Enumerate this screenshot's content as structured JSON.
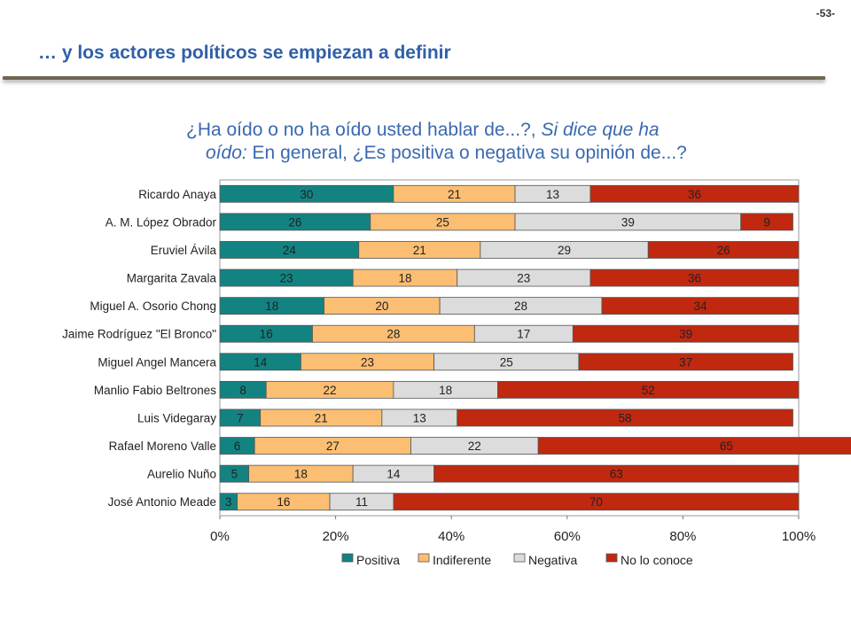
{
  "header": {
    "page_number": "-53-",
    "title": "… y los actores políticos se empiezan a definir"
  },
  "question": {
    "line1": "¿Ha oído o no ha oído usted hablar de...?, ",
    "line1_italic": "Si dice que ha",
    "line2_italic": "oído:",
    "line2": " En general, ¿Es positiva o negativa su opinión de...?"
  },
  "chart_data": {
    "type": "bar",
    "orientation": "horizontal",
    "stacked": "percent",
    "categories": [
      "Ricardo Anaya",
      "A. M. López Obrador",
      "Eruviel Ávila",
      "Margarita Zavala",
      "Miguel A. Osorio Chong",
      "Jaime Rodríguez \"El Bronco\"",
      "Miguel Angel Mancera",
      "Manlio Fabio Beltrones",
      "Luis Videgaray",
      "Rafael Moreno Valle",
      "Aurelio Nuño",
      "José Antonio Meade"
    ],
    "series": [
      {
        "name": "Positiva",
        "color": "#138382",
        "values": [
          30,
          26,
          24,
          23,
          18,
          16,
          14,
          8,
          7,
          6,
          5,
          3
        ]
      },
      {
        "name": "Indiferente",
        "color": "#fbbe72",
        "values": [
          21,
          25,
          21,
          18,
          20,
          28,
          23,
          22,
          21,
          27,
          18,
          16
        ]
      },
      {
        "name": "Negativa",
        "color": "#dcdcdc",
        "values": [
          13,
          39,
          29,
          23,
          28,
          17,
          25,
          18,
          13,
          22,
          14,
          11
        ]
      },
      {
        "name": "No lo conoce",
        "color": "#c02810",
        "values": [
          36,
          9,
          26,
          36,
          34,
          39,
          37,
          52,
          58,
          65,
          63,
          70
        ]
      }
    ],
    "x_ticks": [
      "0%",
      "20%",
      "40%",
      "60%",
      "80%",
      "100%"
    ],
    "xlim": [
      0,
      100
    ],
    "legend_position": "bottom"
  }
}
